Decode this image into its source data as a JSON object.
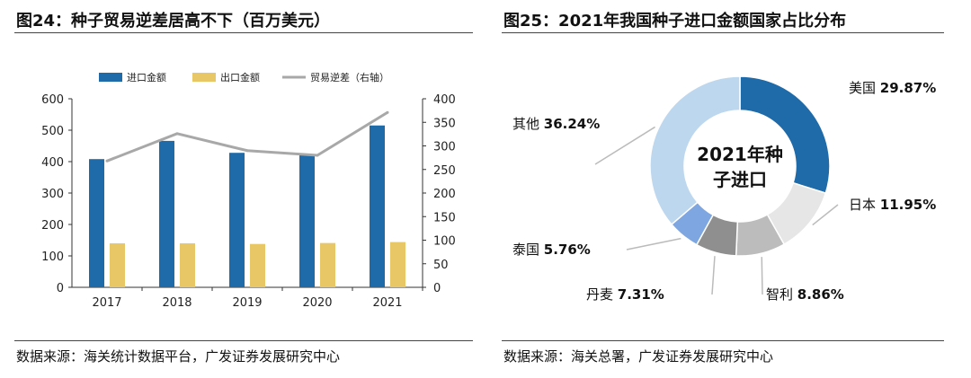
{
  "left": {
    "title": "图24：种子贸易逆差居高不下（百万美元）",
    "source": "数据来源：海关统计数据平台，广发证券发展研究中心",
    "chart_data": {
      "type": "bar+line",
      "categories": [
        "2017",
        "2018",
        "2019",
        "2020",
        "2021"
      ],
      "series": [
        {
          "name": "进口金额",
          "type": "bar",
          "axis": "left",
          "values": [
            408,
            466,
            428,
            421,
            515
          ]
        },
        {
          "name": "出口金额",
          "type": "bar",
          "axis": "left",
          "values": [
            140,
            140,
            138,
            141,
            144
          ]
        },
        {
          "name": "贸易逆差（右轴）",
          "type": "line",
          "axis": "right",
          "values": [
            268,
            326,
            290,
            280,
            371
          ]
        }
      ],
      "yLeft": {
        "min": 0,
        "max": 600,
        "ticks": [
          "0",
          "100",
          "200",
          "300",
          "400",
          "500",
          "600"
        ]
      },
      "yRight": {
        "min": 0,
        "max": 400,
        "ticks": [
          "0",
          "50",
          "100",
          "150",
          "200",
          "250",
          "300",
          "350",
          "400"
        ]
      },
      "colors": {
        "import": "#1f6aa8",
        "export": "#e8c766",
        "deficit": "#a8a8a8"
      }
    }
  },
  "right": {
    "title": "图25：2021年我国种子进口金额国家占比分布",
    "source": "数据来源：海关总署，广发证券发展研究中心",
    "chart_data": {
      "type": "pie",
      "style": "donut",
      "center_label_lines": [
        "2021年种",
        "子进口"
      ],
      "slices": [
        {
          "name": "美国",
          "percent": 29.87,
          "label": "29.87%",
          "color": "#1f6aa8"
        },
        {
          "name": "日本",
          "percent": 11.95,
          "label": "11.95%",
          "color": "#e6e6e6"
        },
        {
          "name": "智利",
          "percent": 8.86,
          "label": "8.86%",
          "color": "#bcbcbc"
        },
        {
          "name": "丹麦",
          "percent": 7.31,
          "label": "7.31%",
          "color": "#8f8f8f"
        },
        {
          "name": "泰国",
          "percent": 5.76,
          "label": "5.76%",
          "color": "#7ea6e0"
        },
        {
          "name": "其他",
          "percent": 36.24,
          "label": "36.24%",
          "color": "#bdd7ee"
        }
      ]
    }
  }
}
